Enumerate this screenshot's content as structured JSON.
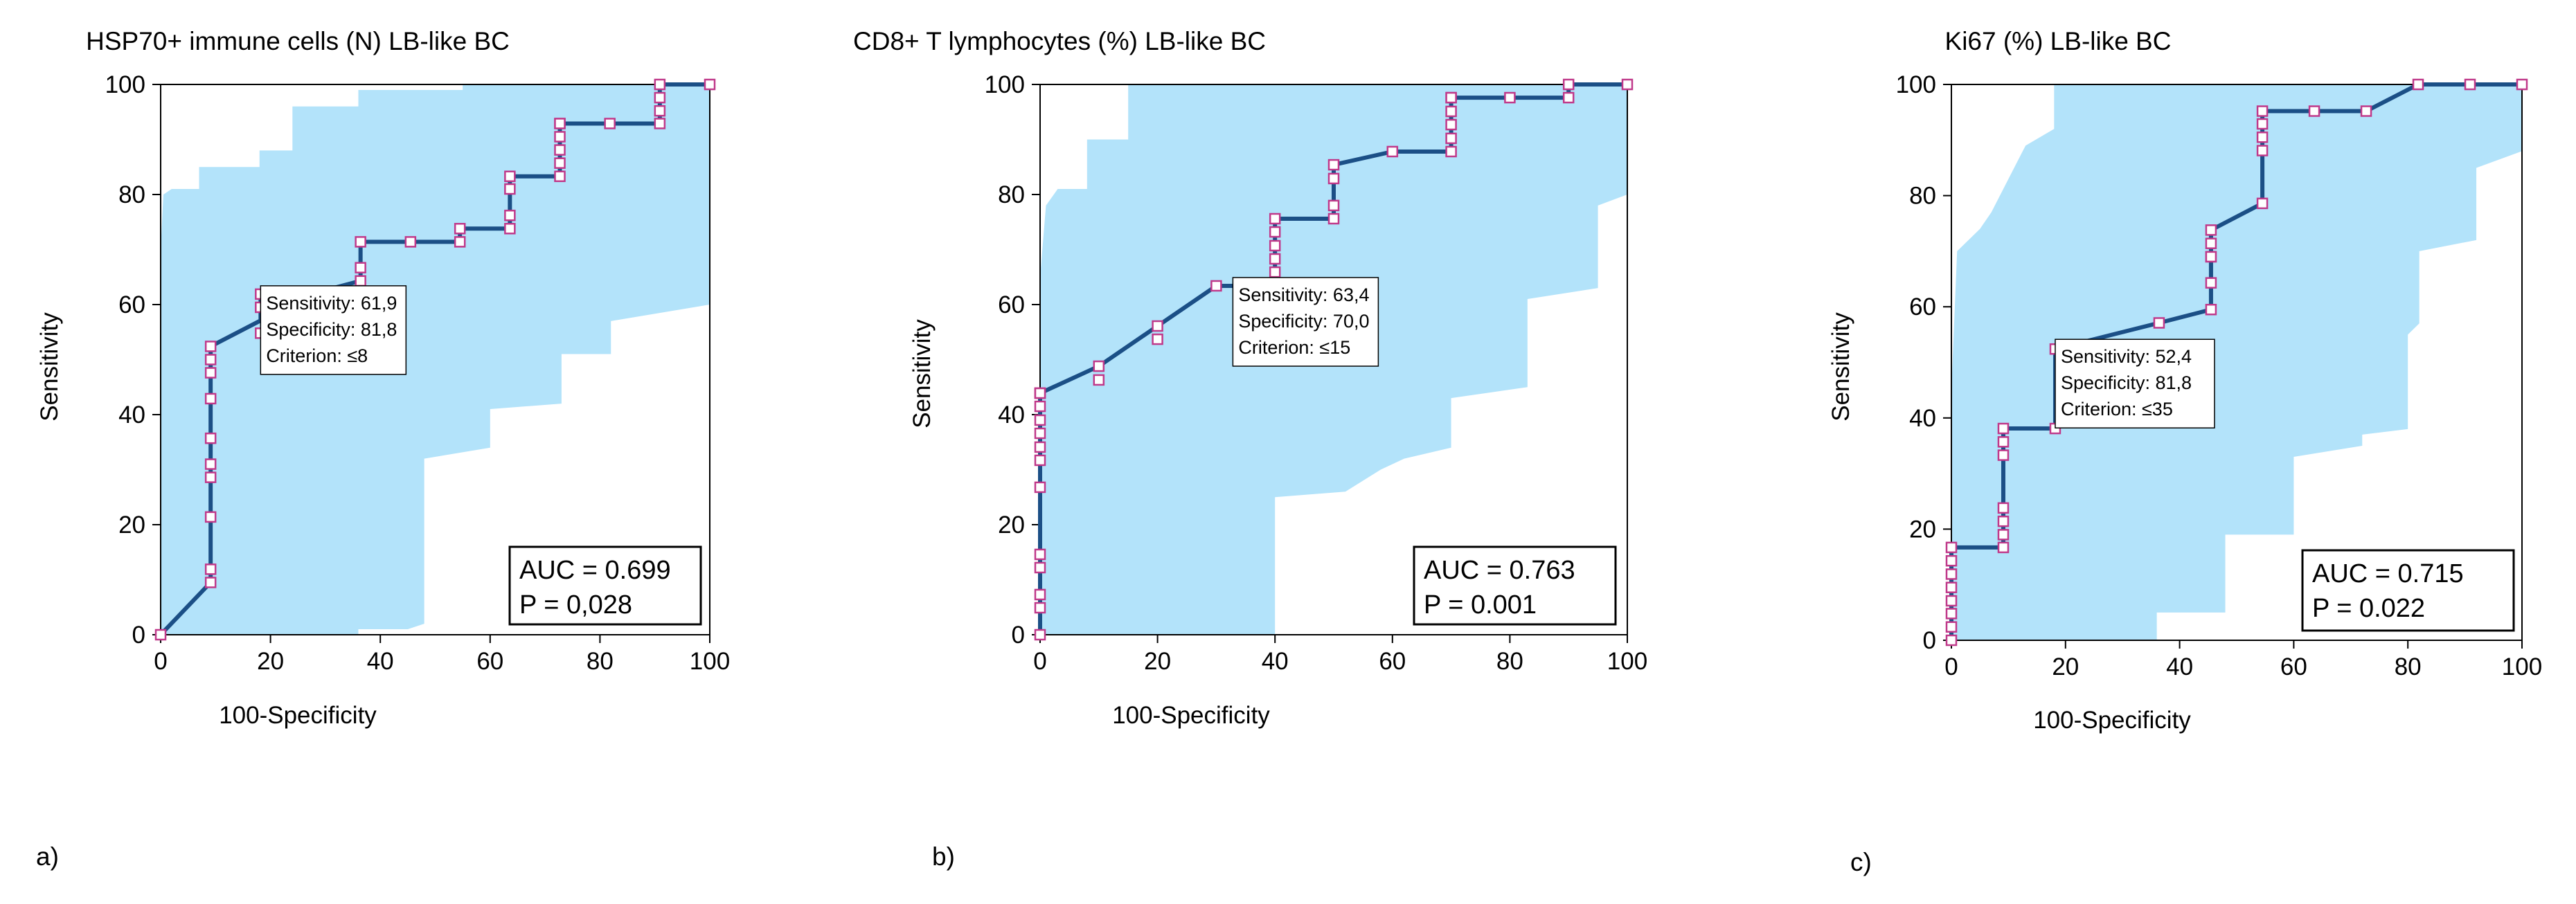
{
  "colors": {
    "ci_fill": "#b3e3fa",
    "curve": "#1b4f86",
    "marker_edge": "#c0398a",
    "marker_fill": "#ffffff",
    "axis": "#000000"
  },
  "chart_data": [
    {
      "type": "line",
      "panel_label": "a)",
      "title": "HSP70+ immune cells (N) LB-like BC",
      "xlabel": "100-Specificity",
      "ylabel": "Sensitivity",
      "xlim": [
        0,
        100
      ],
      "ylim": [
        0,
        100
      ],
      "x_ticks": [
        "0",
        "20",
        "40",
        "60",
        "80",
        "100"
      ],
      "y_ticks": [
        "0",
        "20",
        "40",
        "60",
        "80",
        "100"
      ],
      "roc_curve": {
        "x": [
          0,
          9.1,
          9.1,
          18.2,
          18.2,
          27.3,
          36.4,
          36.4,
          45.5,
          54.5,
          54.5,
          63.6,
          63.6,
          72.7,
          72.7,
          81.8,
          90.9,
          90.9,
          100
        ],
        "y": [
          0,
          9.5,
          52.4,
          57.1,
          61.9,
          61.9,
          64.3,
          71.4,
          71.4,
          71.4,
          73.8,
          73.8,
          83.3,
          83.3,
          92.9,
          92.9,
          92.9,
          100,
          100
        ]
      },
      "markers": {
        "x": [
          0,
          9.1,
          9.1,
          9.1,
          9.1,
          9.1,
          9.1,
          9.1,
          9.1,
          9.1,
          9.1,
          18.2,
          18.2,
          18.2,
          27.3,
          36.4,
          36.4,
          36.4,
          45.5,
          54.5,
          54.5,
          63.6,
          63.6,
          63.6,
          63.6,
          72.7,
          72.7,
          72.7,
          72.7,
          72.7,
          72.7,
          81.8,
          90.9,
          90.9,
          90.9,
          90.9,
          100
        ],
        "y": [
          0,
          9.5,
          11.9,
          21.4,
          28.6,
          31.0,
          35.7,
          42.9,
          47.6,
          50.0,
          52.4,
          54.8,
          59.5,
          61.9,
          61.9,
          64.3,
          66.7,
          71.4,
          71.4,
          71.4,
          73.8,
          73.8,
          76.2,
          81.0,
          83.3,
          83.3,
          85.7,
          88.1,
          90.5,
          92.9,
          92.9,
          92.9,
          92.9,
          95.2,
          97.6,
          100,
          100
        ]
      },
      "ci_upper": {
        "x": [
          0,
          0.5,
          2,
          7,
          7,
          18,
          18,
          24,
          24,
          36,
          36,
          55,
          55,
          77,
          77,
          92,
          100
        ],
        "y": [
          70,
          80,
          81,
          81,
          85,
          85,
          88,
          88,
          96,
          96,
          99,
          99,
          100,
          100,
          100,
          100,
          100
        ]
      },
      "ci_lower": {
        "x": [
          0,
          9,
          18,
          18,
          36,
          36,
          45,
          48,
          48,
          60,
          60,
          73,
          73,
          82,
          82,
          100,
          100
        ],
        "y": [
          0,
          0,
          0,
          0,
          0,
          1,
          1,
          2,
          32,
          34,
          41,
          42,
          51,
          51,
          57,
          60,
          77
        ]
      },
      "annotation": {
        "at": [
          18.2,
          61.9
        ],
        "lines": [
          "Sensitivity: 61,9",
          "Specificity: 81,8",
          "Criterion: ≤8"
        ]
      },
      "stats": {
        "auc": "AUC = 0.699",
        "p": "P = 0,028"
      }
    },
    {
      "type": "line",
      "panel_label": "b)",
      "title": "CD8+ T lymphocytes (%) LB-like BC",
      "xlabel": "100-Specificity",
      "ylabel": "Sensitivity",
      "xlim": [
        0,
        100
      ],
      "ylim": [
        0,
        100
      ],
      "x_ticks": [
        "0",
        "20",
        "40",
        "60",
        "80",
        "100"
      ],
      "y_ticks": [
        "0",
        "20",
        "40",
        "60",
        "80",
        "100"
      ],
      "roc_curve": {
        "x": [
          0,
          0,
          10,
          20,
          30,
          40,
          40,
          50,
          50,
          60,
          70,
          70,
          80,
          90,
          90,
          100
        ],
        "y": [
          0,
          43.9,
          48.8,
          56.1,
          63.4,
          63.4,
          75.6,
          75.6,
          85.4,
          87.8,
          87.8,
          97.6,
          97.6,
          97.6,
          100,
          100
        ]
      },
      "markers": {
        "x": [
          0,
          0,
          0,
          0,
          0,
          0,
          0,
          0,
          0,
          0,
          0,
          0,
          0,
          0,
          10,
          10,
          20,
          20,
          30,
          40,
          40,
          40,
          40,
          40,
          40,
          50,
          50,
          50,
          50,
          60,
          70,
          70,
          70,
          70,
          70,
          70,
          80,
          90,
          90,
          100
        ],
        "y": [
          0,
          4.9,
          7.3,
          12.2,
          14.6,
          26.8,
          31.7,
          34.1,
          36.6,
          39.0,
          41.5,
          43.9,
          43.9,
          43.9,
          46.3,
          48.8,
          53.7,
          56.1,
          63.4,
          63.4,
          65.9,
          68.3,
          70.7,
          73.2,
          75.6,
          75.6,
          78.0,
          82.9,
          85.4,
          87.8,
          87.8,
          90.2,
          92.7,
          95.1,
          97.6,
          97.6,
          97.6,
          97.6,
          100,
          100
        ]
      },
      "ci_upper": {
        "x": [
          0,
          1,
          3,
          8,
          8,
          15,
          15,
          100
        ],
        "y": [
          65,
          78,
          81,
          81,
          90,
          90,
          100,
          100
        ]
      },
      "ci_lower": {
        "x": [
          0,
          40,
          40,
          52,
          55,
          58,
          62,
          70,
          70,
          83,
          83,
          95,
          95,
          100,
          100
        ],
        "y": [
          0,
          0,
          25,
          26,
          28,
          30,
          32,
          34,
          43,
          45,
          61,
          63,
          78,
          80,
          83
        ]
      },
      "annotation": {
        "at": [
          30,
          63.4
        ],
        "lines": [
          "Sensitivity: 63,4",
          "Specificity: 70,0",
          "Criterion: ≤15"
        ]
      },
      "stats": {
        "auc": "AUC = 0.763",
        "p": "P = 0.001"
      }
    },
    {
      "type": "line",
      "panel_label": "c)",
      "title": "Ki67 (%) LB-like BC",
      "xlabel": "100-Specificity",
      "ylabel": "Sensitivity",
      "xlim": [
        0,
        100
      ],
      "ylim": [
        0,
        100
      ],
      "x_ticks": [
        "0",
        "20",
        "40",
        "60",
        "80",
        "100"
      ],
      "y_ticks": [
        "0",
        "20",
        "40",
        "60",
        "80",
        "100"
      ],
      "roc_curve": {
        "x": [
          0,
          0,
          9.1,
          9.1,
          18.2,
          18.2,
          36.4,
          45.5,
          45.5,
          54.5,
          54.5,
          63.6,
          72.7,
          81.8,
          90.9,
          100
        ],
        "y": [
          0,
          16.7,
          16.7,
          38.1,
          38.1,
          52.4,
          57.1,
          59.5,
          73.8,
          78.6,
          95.2,
          95.2,
          95.2,
          100,
          100,
          100
        ]
      },
      "markers": {
        "x": [
          0,
          0,
          0,
          0,
          0,
          0,
          0,
          0,
          9.1,
          9.1,
          9.1,
          9.1,
          9.1,
          9.1,
          9.1,
          18.2,
          18.2,
          36.4,
          45.5,
          45.5,
          45.5,
          45.5,
          45.5,
          45.5,
          54.5,
          54.5,
          54.5,
          54.5,
          54.5,
          63.6,
          72.7,
          81.8,
          90.9,
          100
        ],
        "y": [
          0,
          2.4,
          4.8,
          7.1,
          9.5,
          11.9,
          14.3,
          16.7,
          16.7,
          19.0,
          21.4,
          23.8,
          33.3,
          35.7,
          38.1,
          38.1,
          52.4,
          57.1,
          59.5,
          64.3,
          69.0,
          71.4,
          73.8,
          69.0,
          78.6,
          88.1,
          90.5,
          92.9,
          95.2,
          95.2,
          95.2,
          100,
          100,
          100
        ]
      },
      "ci_upper": {
        "x": [
          0,
          1,
          5,
          7,
          7,
          13,
          13,
          18,
          18,
          100
        ],
        "y": [
          45,
          70,
          74,
          77,
          77,
          89,
          89,
          92,
          100,
          100
        ]
      },
      "ci_lower": {
        "x": [
          0,
          18,
          18,
          36,
          36,
          48,
          48,
          60,
          60,
          72,
          72,
          80,
          80,
          82,
          82,
          92,
          92,
          100,
          100
        ],
        "y": [
          0,
          0,
          0,
          0,
          5,
          5,
          19,
          19,
          33,
          35,
          37,
          38,
          55,
          57,
          70,
          72,
          85,
          88,
          90
        ]
      },
      "annotation": {
        "at": [
          18.2,
          52.4
        ],
        "lines": [
          "Sensitivity: 52,4",
          "Specificity: 81,8",
          "Criterion: ≤35"
        ]
      },
      "stats": {
        "auc": "AUC = 0.715",
        "p": "P = 0.022"
      }
    }
  ]
}
